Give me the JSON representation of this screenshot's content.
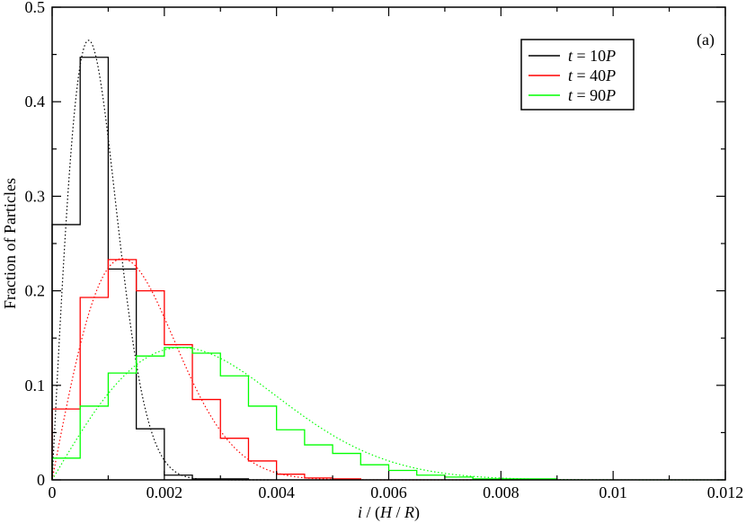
{
  "chart_data": {
    "type": "step-histogram",
    "panel_label": "(a)",
    "xlabel": {
      "main": "i / (H / R)",
      "parts": [
        "i",
        " / (",
        "H",
        " / ",
        "R",
        ")"
      ]
    },
    "ylabel": "Fraction of Particles",
    "xlim": [
      0,
      0.012
    ],
    "ylim": [
      0,
      0.5
    ],
    "x_ticks": [
      0,
      0.002,
      0.004,
      0.006,
      0.008,
      0.01,
      0.012
    ],
    "x_tick_labels": [
      "0",
      "0.002",
      "0.004",
      "0.006",
      "0.008",
      "0.01",
      "0.012"
    ],
    "y_ticks": [
      0,
      0.1,
      0.2,
      0.3,
      0.4,
      0.5
    ],
    "y_tick_labels": [
      "0",
      "0.1",
      "0.2",
      "0.3",
      "0.4",
      "0.5"
    ],
    "bin_width": 0.0005,
    "grid": false,
    "legend_position": "top-right",
    "series": [
      {
        "name": "t = 10P",
        "legend_parts": [
          "t",
          " = 10",
          "P"
        ],
        "color": "#000000",
        "bin_values": [
          0.27,
          0.447,
          0.223,
          0.054,
          0.005,
          0.001,
          0.001
        ],
        "fit": {
          "type": "rayleigh",
          "peak_x": 0.00065,
          "peak_y": 0.465
        }
      },
      {
        "name": "t = 40P",
        "legend_parts": [
          "t",
          " = 40",
          "P"
        ],
        "color": "#ff0000",
        "bin_values": [
          0.075,
          0.193,
          0.233,
          0.2,
          0.143,
          0.085,
          0.044,
          0.02,
          0.006,
          0.002,
          0.001
        ],
        "fit": {
          "type": "rayleigh",
          "peak_x": 0.00125,
          "peak_y": 0.234
        }
      },
      {
        "name": "t = 90P",
        "legend_parts": [
          "t",
          " = 90",
          "P"
        ],
        "color": "#00ff00",
        "bin_values": [
          0.023,
          0.078,
          0.113,
          0.131,
          0.14,
          0.134,
          0.11,
          0.078,
          0.053,
          0.037,
          0.028,
          0.016,
          0.01,
          0.005,
          0.003,
          0.001,
          0.001,
          0.001
        ],
        "fit": {
          "type": "rayleigh",
          "peak_x": 0.0023,
          "peak_y": 0.14
        }
      }
    ]
  }
}
